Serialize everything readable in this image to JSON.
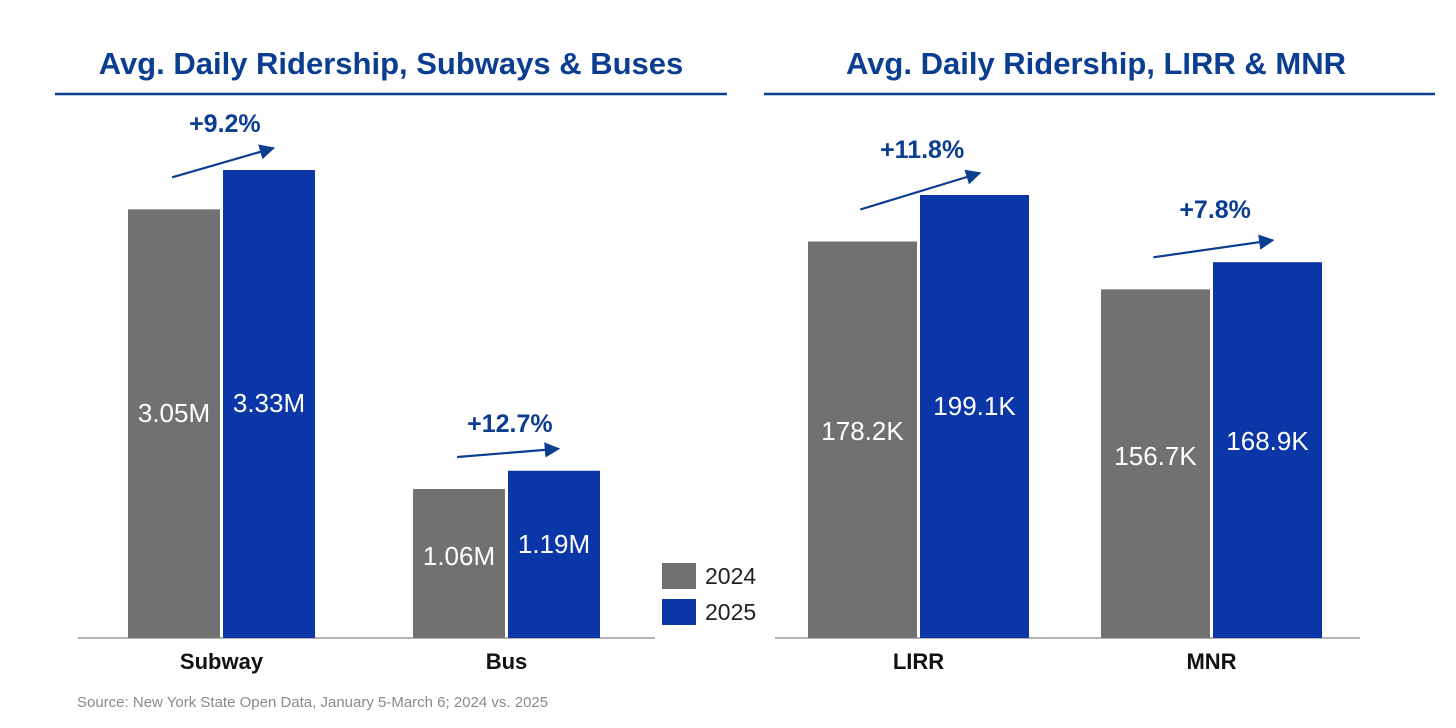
{
  "colors": {
    "2024": "#717171",
    "2025": "#0a36a8",
    "accent": "#0b3d91",
    "baseline": "#9a9a9a"
  },
  "legend": {
    "items": [
      {
        "label": "2024",
        "color": "#717171"
      },
      {
        "label": "2025",
        "color": "#0a36a8"
      }
    ]
  },
  "source": "Source: New York State Open Data, January 5-March 6; 2024 vs. 2025",
  "chart_data": [
    {
      "type": "bar",
      "title": "Avg. Daily Ridership, Subways & Buses",
      "categories": [
        "Subway",
        "Bus"
      ],
      "series": [
        {
          "name": "2024",
          "values": [
            3.05,
            1.06
          ],
          "labels": [
            "3.05M",
            "1.06M"
          ]
        },
        {
          "name": "2025",
          "values": [
            3.33,
            1.19
          ],
          "labels": [
            "3.33M",
            "1.19M"
          ]
        }
      ],
      "changes": [
        "+9.2%",
        "+12.7%"
      ],
      "unit": "M",
      "ylim": [
        0,
        3.7
      ],
      "grid": false
    },
    {
      "type": "bar",
      "title": "Avg. Daily Ridership, LIRR & MNR",
      "categories": [
        "LIRR",
        "MNR"
      ],
      "series": [
        {
          "name": "2024",
          "values": [
            178.2,
            156.7
          ],
          "labels": [
            "178.2K",
            "156.7K"
          ]
        },
        {
          "name": "2025",
          "values": [
            199.1,
            168.9
          ],
          "labels": [
            "199.1K",
            "168.9K"
          ]
        }
      ],
      "changes": [
        "+11.8%",
        "+7.8%"
      ],
      "unit": "K",
      "ylim": [
        0,
        225
      ],
      "grid": false
    }
  ]
}
